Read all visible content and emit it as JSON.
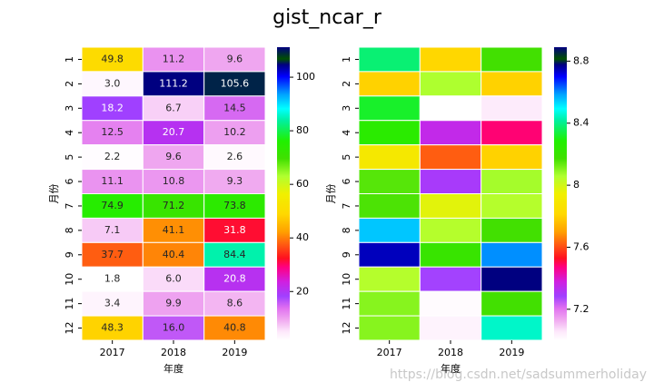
{
  "title": "gist_ncar_r",
  "watermark": "https://blog.csdn.net/sadsummerholiday",
  "chart_data": [
    {
      "type": "heatmap",
      "xlabel": "年度",
      "ylabel": "月份",
      "x": [
        "2017",
        "2018",
        "2019"
      ],
      "y": [
        "1",
        "2",
        "3",
        "4",
        "5",
        "6",
        "7",
        "8",
        "9",
        "10",
        "11",
        "12"
      ],
      "values": [
        [
          49.8,
          11.2,
          9.6
        ],
        [
          3.0,
          111.2,
          105.6
        ],
        [
          18.2,
          6.7,
          14.5
        ],
        [
          12.5,
          20.7,
          10.2
        ],
        [
          2.2,
          9.6,
          2.6
        ],
        [
          11.1,
          10.8,
          9.3
        ],
        [
          74.9,
          71.2,
          73.8
        ],
        [
          7.1,
          41.1,
          31.8
        ],
        [
          37.7,
          40.4,
          84.4
        ],
        [
          1.8,
          6.0,
          20.8
        ],
        [
          3.4,
          9.9,
          8.6
        ],
        [
          48.3,
          16.0,
          40.8
        ]
      ],
      "value_labels": [
        [
          "49.8",
          "11.2",
          "9.6"
        ],
        [
          "3.0",
          "111.2",
          "105.6"
        ],
        [
          "18.2",
          "6.7",
          "14.5"
        ],
        [
          "12.5",
          "20.7",
          "10.2"
        ],
        [
          "2.2",
          "9.6",
          "2.6"
        ],
        [
          "11.1",
          "10.8",
          "9.3"
        ],
        [
          "74.9",
          "71.2",
          "73.8"
        ],
        [
          "7.1",
          "41.1",
          "31.8"
        ],
        [
          "37.7",
          "40.4",
          "84.4"
        ],
        [
          "1.8",
          "6.0",
          "20.8"
        ],
        [
          "3.4",
          "9.9",
          "8.6"
        ],
        [
          "48.3",
          "16.0",
          "40.8"
        ]
      ],
      "clim": [
        1.8,
        111.2
      ],
      "cticks": [
        20,
        40,
        60,
        80,
        100
      ]
    },
    {
      "type": "heatmap",
      "xlabel": "年度",
      "ylabel": "月份",
      "x": [
        "2017",
        "2018",
        "2019"
      ],
      "y": [
        "1",
        "2",
        "3",
        "4",
        "5",
        "6",
        "7",
        "8",
        "9",
        "10",
        "11",
        "12"
      ],
      "values": [
        [
          8.38,
          7.81,
          8.17
        ],
        [
          7.8,
          8.06,
          7.8
        ],
        [
          8.32,
          7.0,
          7.05
        ],
        [
          8.25,
          7.35,
          7.48
        ],
        [
          7.9,
          7.62,
          7.8
        ],
        [
          8.15,
          7.3,
          8.07
        ],
        [
          8.16,
          7.97,
          8.05
        ],
        [
          8.55,
          8.05,
          8.17
        ],
        [
          8.74,
          8.2,
          8.6
        ],
        [
          8.05,
          7.28,
          8.89
        ],
        [
          8.1,
          7.01,
          8.17
        ],
        [
          8.1,
          7.03,
          8.45
        ]
      ],
      "clim": [
        7.0,
        8.89
      ],
      "cticks": [
        7.2,
        7.6,
        8.0,
        8.4,
        8.8
      ]
    }
  ],
  "colormap": "gist_ncar_r",
  "colorscale": [
    [
      0,
      "#ffffff"
    ],
    [
      0.03,
      "#fde8fb"
    ],
    [
      0.07,
      "#f0a8f0"
    ],
    [
      0.11,
      "#e070f0"
    ],
    [
      0.15,
      "#a040ff"
    ],
    [
      0.2,
      "#d020e0"
    ],
    [
      0.25,
      "#ff0080"
    ],
    [
      0.28,
      "#ff1020"
    ],
    [
      0.33,
      "#ff6010"
    ],
    [
      0.37,
      "#ffa000"
    ],
    [
      0.43,
      "#ffd800"
    ],
    [
      0.5,
      "#f0f000"
    ],
    [
      0.56,
      "#b0ff30"
    ],
    [
      0.62,
      "#40e000"
    ],
    [
      0.68,
      "#20f000"
    ],
    [
      0.75,
      "#00f0a0"
    ],
    [
      0.79,
      "#00ffff"
    ],
    [
      0.84,
      "#00a0ff"
    ],
    [
      0.9,
      "#0000ff"
    ],
    [
      0.94,
      "#000080"
    ],
    [
      0.96,
      "#005000"
    ],
    [
      1,
      "#000080"
    ]
  ]
}
